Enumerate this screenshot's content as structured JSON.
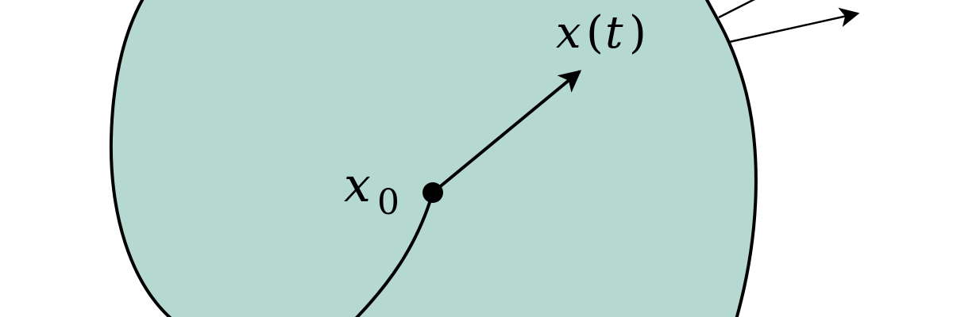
{
  "colors": {
    "region_fill": "#b5d8d0",
    "stroke": "#000000",
    "background": "#ffffff"
  },
  "labels": {
    "start_var": "x",
    "start_sub": "0",
    "end_var": "x",
    "end_paren_open": "(",
    "end_arg": "t",
    "end_paren_close": ")"
  }
}
